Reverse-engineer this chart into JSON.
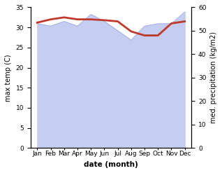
{
  "months": [
    "Jan",
    "Feb",
    "Mar",
    "Apr",
    "May",
    "Jun",
    "Jul",
    "Aug",
    "Sep",
    "Oct",
    "Nov",
    "Dec"
  ],
  "max_temp": [
    31.2,
    32.0,
    32.5,
    32.0,
    32.0,
    31.8,
    31.5,
    29.0,
    28.0,
    28.0,
    31.0,
    31.5
  ],
  "precipitation": [
    53,
    52,
    54,
    52,
    57,
    54,
    50,
    46,
    52,
    53,
    53,
    58
  ],
  "temp_color": "#c0392b",
  "precip_fill_color": "#c5cef0",
  "precip_line_color": "#aab4e8",
  "ylim_temp": [
    0,
    35
  ],
  "ylim_precip": [
    0,
    60
  ],
  "xlabel": "date (month)",
  "ylabel_left": "max temp (C)",
  "ylabel_right": "med. precipitation (kg/m2)",
  "temp_linewidth": 2.0
}
